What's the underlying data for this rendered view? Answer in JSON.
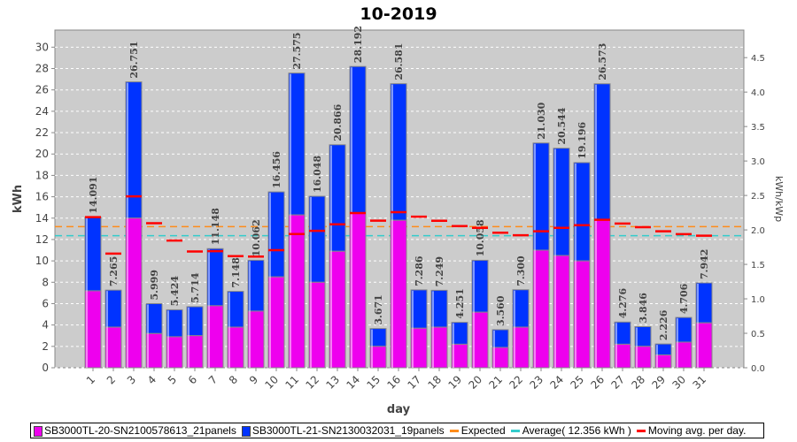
{
  "chart_data": {
    "type": "bar",
    "title": "10-2019",
    "xlabel": "day",
    "ylabel": "kWh",
    "y2label": "kWh/kWp",
    "ylim": [
      0,
      31.6
    ],
    "y2lim": [
      0,
      4.9
    ],
    "yticks": [
      0,
      2,
      4,
      6,
      8,
      10,
      12,
      14,
      16,
      18,
      20,
      22,
      24,
      26,
      28,
      30
    ],
    "y2ticks": [
      "0.0",
      "0.5",
      "1.0",
      "1.5",
      "2.0",
      "2.5",
      "3.0",
      "3.5",
      "4.0",
      "4.5"
    ],
    "categories": [
      "1",
      "2",
      "3",
      "4",
      "5",
      "6",
      "7",
      "8",
      "9",
      "10",
      "11",
      "12",
      "13",
      "14",
      "15",
      "16",
      "17",
      "18",
      "19",
      "20",
      "21",
      "22",
      "23",
      "24",
      "25",
      "26",
      "27",
      "28",
      "29",
      "30",
      "31"
    ],
    "totals": [
      14.091,
      7.265,
      26.751,
      5.999,
      5.424,
      5.714,
      11.148,
      7.148,
      10.062,
      16.456,
      27.575,
      16.048,
      20.866,
      28.192,
      3.671,
      26.581,
      7.286,
      7.249,
      4.251,
      10.058,
      3.56,
      7.3,
      21.03,
      20.544,
      19.196,
      26.573,
      4.276,
      3.846,
      2.226,
      4.706,
      7.942
    ],
    "total_labels": [
      "14.091",
      "7.265",
      "26.751",
      "5.999",
      "5.424",
      "5.714",
      "11.148",
      "7.148",
      "10.062",
      "16.456",
      "27.575",
      "16.048",
      "20.866",
      "28.192",
      "3.671",
      "26.581",
      "7.286",
      "7.249",
      "4.251",
      "10.058",
      "3.560",
      "7.300",
      "21.030",
      "20.544",
      "19.196",
      "26.573",
      "4.276",
      "3.846",
      "2.226",
      "4.706",
      "7.942"
    ],
    "series": [
      {
        "name": "SB3000TL-20-SN2100578613_21panels",
        "color": "#ee00ee",
        "values": [
          7.2,
          3.8,
          14.0,
          3.2,
          2.9,
          3.0,
          5.8,
          3.8,
          5.3,
          8.5,
          14.3,
          8.0,
          10.9,
          14.5,
          2.0,
          13.8,
          3.7,
          3.8,
          2.2,
          5.2,
          1.9,
          3.8,
          11.0,
          10.5,
          10.0,
          13.8,
          2.2,
          2.0,
          1.2,
          2.4,
          4.2
        ]
      },
      {
        "name": "SB3000TL-21-SN2130032031_19panels",
        "color": "#0033ff"
      }
    ],
    "expected": {
      "name": "Expected",
      "value": 13.2,
      "color": "#ff8c1a"
    },
    "average": {
      "name": "Average( 12.356 kWh )",
      "value": 12.356,
      "color": "#33cccc"
    },
    "moving_avg": {
      "name": "Moving avg. per day.",
      "color": "#ff0000"
    }
  }
}
